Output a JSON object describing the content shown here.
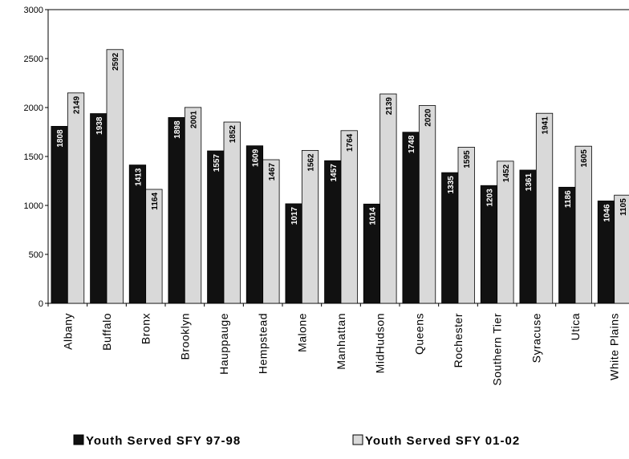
{
  "chart_data": {
    "type": "bar",
    "categories": [
      "Albany",
      "Buffalo",
      "Bronx",
      "Brooklyn",
      "Hauppauge",
      "Hempstead",
      "Malone",
      "Manhattan",
      "MidHudson",
      "Queens",
      "Rochester",
      "Southern Tier",
      "Syracuse",
      "Utica",
      "White Plains"
    ],
    "series": [
      {
        "name": "Youth Served SFY 97-98",
        "color": "#111111",
        "values": [
          1808,
          1938,
          1413,
          1898,
          1557,
          1609,
          1017,
          1457,
          1014,
          1748,
          1335,
          1203,
          1361,
          1186,
          1046
        ]
      },
      {
        "name": "Youth Served SFY 01-02",
        "color": "#d9d9d9",
        "values": [
          2149,
          2592,
          1164,
          2001,
          1852,
          1467,
          1562,
          1764,
          2139,
          2020,
          1595,
          1452,
          1941,
          1605,
          1105
        ]
      }
    ],
    "ylim": [
      0,
      3000
    ],
    "yticks": [
      0,
      500,
      1000,
      1500,
      2000,
      2500,
      3000
    ],
    "grid": false,
    "legend": "bottom"
  }
}
